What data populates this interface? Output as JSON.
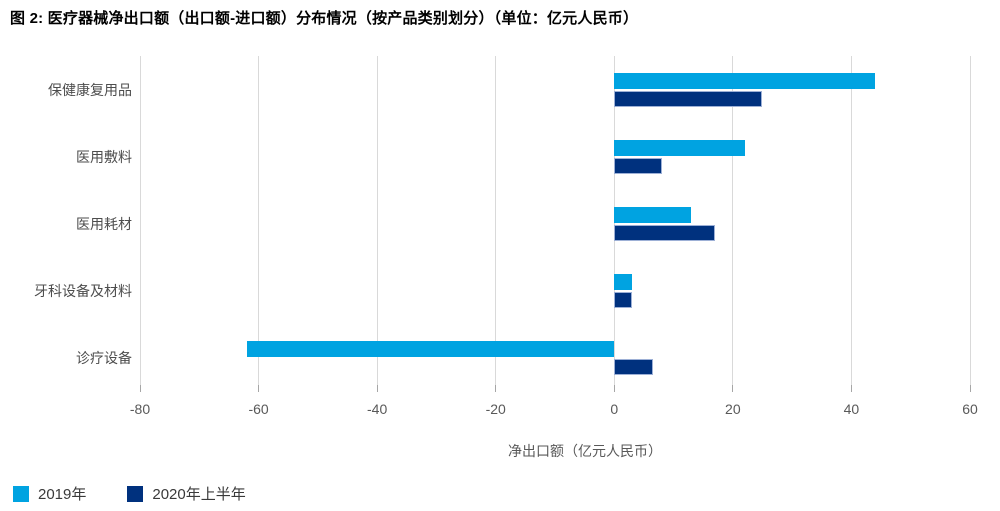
{
  "title": "图 2: 医疗器械净出口额（出口额-进口额）分布情况（按产品类别划分）（单位：亿元人民币）",
  "colors": {
    "series_2019": "#00a3e1",
    "series_2020h1": "#00317e",
    "gridline": "#d9d9d9",
    "tick": "#a6a6a6",
    "axis_text": "#595959",
    "title_text": "#000000"
  },
  "chart_data": {
    "type": "bar",
    "orientation": "horizontal",
    "title": "图 2: 医疗器械净出口额（出口额-进口额）分布情况（按产品类别划分）（单位：亿元人民币）",
    "categories": [
      "保健康复用品",
      "医用敷料",
      "医用耗材",
      "牙科设备及材料",
      "诊疗设备"
    ],
    "series": [
      {
        "name": "2019年",
        "color": "#00a3e1",
        "values": [
          44,
          22,
          13,
          3,
          -62
        ]
      },
      {
        "name": "2020年上半年",
        "color": "#00317e",
        "values": [
          25,
          8,
          17,
          3,
          6.5
        ]
      }
    ],
    "xlabel": "净出口额（亿元人民币）",
    "xlim": [
      -80,
      60
    ],
    "xticks": [
      -80,
      -60,
      -40,
      -20,
      0,
      20,
      40,
      60
    ],
    "grid": true,
    "legend_position": "bottom-left"
  }
}
